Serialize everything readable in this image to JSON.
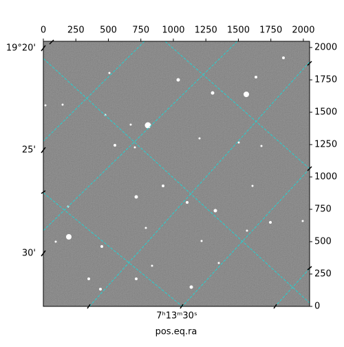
{
  "chart_data": {
    "type": "image",
    "xlabel": "pos.eq.ra",
    "xlim": [
      0,
      2048
    ],
    "ylim": [
      0,
      2048
    ],
    "xticks": [
      0,
      250,
      500,
      750,
      1000,
      1250,
      1500,
      1750,
      2000
    ],
    "yticks": [
      0,
      250,
      500,
      750,
      1000,
      1250,
      1500,
      1750,
      2000
    ],
    "dec_ticks": [
      "19°20'",
      "25'",
      "30'"
    ],
    "ra_ticks": [
      "7ʰ13ᵐ30ˢ"
    ],
    "grid_color": "#22d3d3"
  }
}
